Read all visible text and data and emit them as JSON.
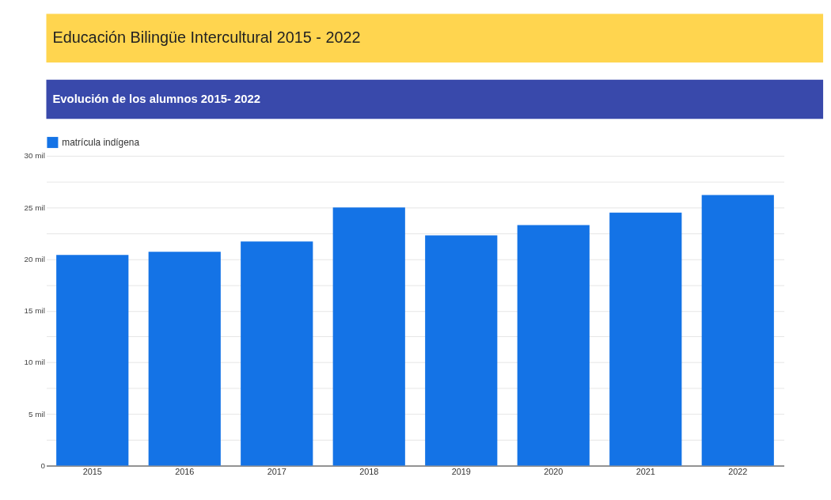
{
  "chart_data": {
    "type": "bar",
    "title": "Educación Bilingüe Intercultural 2015 - 2022",
    "subtitle": "Evolución de los alumnos 2015- 2022",
    "categories": [
      "2015",
      "2016",
      "2017",
      "2018",
      "2019",
      "2020",
      "2021",
      "2022"
    ],
    "series": [
      {
        "name": "matrícula indígena",
        "color": "#1473e6",
        "values": [
          20.4,
          20.7,
          21.7,
          25.0,
          22.3,
          23.3,
          24.5,
          26.2
        ]
      }
    ],
    "ylim": [
      0,
      30
    ],
    "yticks": [
      0,
      {
        "value": 2.5,
        "label": null
      },
      {
        "value": 5,
        "label": "5 mil"
      },
      {
        "value": 7.5,
        "label": null
      },
      {
        "value": 10,
        "label": "10 mil"
      },
      {
        "value": 12.5,
        "label": null
      },
      {
        "value": 15,
        "label": "15 mil"
      },
      {
        "value": 17.5,
        "label": null
      },
      {
        "value": 20,
        "label": "20 mil"
      },
      {
        "value": 22.5,
        "label": null
      },
      {
        "value": 25,
        "label": "25 mil"
      },
      {
        "value": 27.5,
        "label": null
      },
      {
        "value": 30,
        "label": "30 mil"
      }
    ],
    "grid": "y",
    "legend": "top left"
  }
}
